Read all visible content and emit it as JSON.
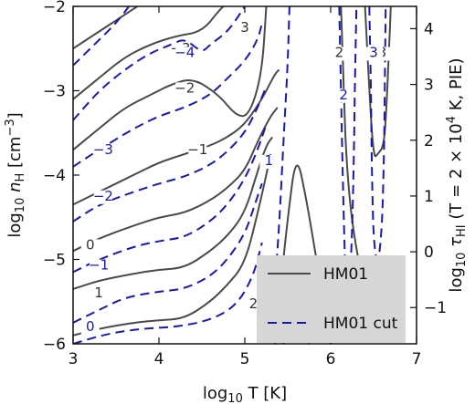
{
  "chart_data": {
    "type": "contour",
    "xlabel": "log10 T [K]",
    "ylabel": "log10 nH [cm^-3]",
    "y2label": "log10 τHI (T = 2 × 10^4 K, PIE)",
    "xlim": [
      3,
      7
    ],
    "ylim": [
      -6,
      -2
    ],
    "y2lim": [
      -1.65,
      4.4
    ],
    "x_ticks": [
      "3",
      "4",
      "5",
      "6",
      "7"
    ],
    "y_ticks": [
      "−6",
      "−5",
      "−4",
      "−3",
      "−2"
    ],
    "y2_ticks": [
      "−1",
      "0",
      "1",
      "2",
      "3",
      "4"
    ],
    "legend": {
      "position": "lower-right",
      "entries": [
        {
          "label": "HM01",
          "style": "solid",
          "color": "#4a4a4a"
        },
        {
          "label": "HM01 cut",
          "style": "dashed",
          "color": "#1a1aaa"
        }
      ]
    },
    "series": [
      {
        "name": "HM01",
        "style": "solid",
        "color": "#4a4a4a",
        "contours": [
          {
            "level": 1,
            "points": [
              [
                3,
                -5.9
              ],
              [
                3.3,
                -5.82
              ],
              [
                3.7,
                -5.75
              ],
              [
                4.0,
                -5.72
              ],
              [
                4.3,
                -5.7
              ],
              [
                4.6,
                -5.5
              ],
              [
                4.8,
                -5.3
              ],
              [
                5.0,
                -5.05
              ],
              [
                5.15,
                -4.45
              ],
              [
                5.25,
                -4.0
              ],
              [
                5.3,
                -3.75
              ]
            ]
          },
          {
            "level": 0,
            "points": [
              [
                3,
                -5.35
              ],
              [
                3.3,
                -5.25
              ],
              [
                3.7,
                -5.17
              ],
              [
                4.0,
                -5.12
              ],
              [
                4.3,
                -5.1
              ],
              [
                4.6,
                -4.9
              ],
              [
                4.8,
                -4.72
              ],
              [
                5.0,
                -4.45
              ],
              [
                5.15,
                -3.95
              ],
              [
                5.25,
                -3.65
              ],
              [
                5.32,
                -3.55
              ]
            ]
          },
          {
            "level": -1,
            "points": [
              [
                3,
                -4.9
              ],
              [
                3.3,
                -4.75
              ],
              [
                3.7,
                -4.6
              ],
              [
                4.0,
                -4.5
              ],
              [
                4.3,
                -4.45
              ],
              [
                4.6,
                -4.3
              ],
              [
                4.8,
                -4.15
              ],
              [
                5.0,
                -3.95
              ],
              [
                5.15,
                -3.6
              ],
              [
                5.3,
                -3.3
              ],
              [
                5.38,
                -3.2
              ]
            ]
          },
          {
            "level": -2,
            "points": [
              [
                3,
                -4.35
              ],
              [
                3.3,
                -4.2
              ],
              [
                3.7,
                -4.0
              ],
              [
                4.0,
                -3.85
              ],
              [
                4.3,
                -3.75
              ],
              [
                4.6,
                -3.65
              ],
              [
                4.8,
                -3.55
              ],
              [
                5.0,
                -3.4
              ],
              [
                5.2,
                -3.1
              ],
              [
                5.35,
                -2.8
              ],
              [
                5.4,
                -2.75
              ]
            ]
          },
          {
            "level": -3,
            "points": [
              [
                3,
                -3.7
              ],
              [
                3.3,
                -3.45
              ],
              [
                3.6,
                -3.2
              ],
              [
                3.9,
                -3.05
              ],
              [
                4.15,
                -2.92
              ],
              [
                4.4,
                -2.85
              ],
              [
                4.7,
                -3.05
              ],
              [
                4.9,
                -3.3
              ],
              [
                5.05,
                -3.3
              ],
              [
                5.2,
                -2.8
              ],
              [
                5.25,
                -2.0
              ]
            ]
          },
          {
            "level": -4,
            "points": [
              [
                3,
                -3.1
              ],
              [
                3.3,
                -2.85
              ],
              [
                3.6,
                -2.6
              ],
              [
                3.9,
                -2.45
              ],
              [
                4.2,
                -2.35
              ],
              [
                4.5,
                -2.3
              ],
              [
                4.7,
                -2.05
              ],
              [
                4.75,
                -2.0
              ]
            ]
          },
          {
            "level": -5,
            "points": [
              [
                3,
                -2.5
              ],
              [
                3.3,
                -2.3
              ],
              [
                3.6,
                -2.1
              ],
              [
                3.75,
                -2.0
              ]
            ]
          },
          {
            "level": 2,
            "points": [
              [
                5.35,
                -6.0
              ],
              [
                5.42,
                -5.3
              ],
              [
                5.5,
                -4.5
              ],
              [
                5.6,
                -3.72
              ],
              [
                5.72,
                -4.3
              ],
              [
                5.85,
                -5.1
              ],
              [
                5.98,
                -5.85
              ],
              [
                6.0,
                -6.0
              ]
            ]
          },
          {
            "level": 2,
            "points": [
              [
                6.12,
                -2.0
              ],
              [
                6.15,
                -2.9
              ],
              [
                6.18,
                -3.8
              ],
              [
                6.25,
                -4.6
              ],
              [
                6.38,
                -5.3
              ],
              [
                6.45,
                -5.55
              ],
              [
                6.5,
                -5.7
              ],
              [
                6.55,
                -5.85
              ]
            ]
          },
          {
            "level": 3,
            "points": [
              [
                6.4,
                -2.0
              ],
              [
                6.45,
                -3.0
              ],
              [
                6.5,
                -3.8
              ],
              [
                6.55,
                -3.75
              ],
              [
                6.62,
                -3.65
              ],
              [
                6.65,
                -3.2
              ],
              [
                6.68,
                -2.5
              ],
              [
                6.7,
                -2.0
              ]
            ]
          }
        ]
      },
      {
        "name": "HM01 cut",
        "style": "dashed",
        "color": "#1a1aaa",
        "contours": [
          {
            "level": 0,
            "points": [
              [
                3,
                -6.0
              ],
              [
                3.4,
                -5.88
              ],
              [
                3.8,
                -5.82
              ],
              [
                4.2,
                -5.8
              ],
              [
                4.6,
                -5.72
              ],
              [
                4.9,
                -5.55
              ],
              [
                5.1,
                -5.2
              ],
              [
                5.2,
                -4.8
              ]
            ]
          },
          {
            "level": -1,
            "points": [
              [
                3,
                -5.75
              ],
              [
                3.3,
                -5.6
              ],
              [
                3.6,
                -5.45
              ],
              [
                4.0,
                -5.38
              ],
              [
                4.3,
                -5.35
              ],
              [
                4.6,
                -5.2
              ],
              [
                4.8,
                -5.0
              ],
              [
                5.0,
                -4.7
              ],
              [
                5.1,
                -4.4
              ],
              [
                5.2,
                -4.1
              ]
            ]
          },
          {
            "level": -1,
            "points": [
              [
                3,
                -5.15
              ],
              [
                3.3,
                -5.0
              ],
              [
                3.7,
                -4.85
              ],
              [
                4.0,
                -4.78
              ],
              [
                4.3,
                -4.74
              ],
              [
                4.6,
                -4.55
              ],
              [
                4.8,
                -4.35
              ],
              [
                5.0,
                -4.05
              ],
              [
                5.15,
                -3.7
              ],
              [
                5.25,
                -3.4
              ]
            ]
          },
          {
            "level": -2,
            "points": [
              [
                3,
                -4.55
              ],
              [
                3.3,
                -4.35
              ],
              [
                3.7,
                -4.2
              ],
              [
                4.0,
                -4.1
              ],
              [
                4.3,
                -4.02
              ],
              [
                4.6,
                -3.88
              ],
              [
                4.8,
                -3.72
              ],
              [
                5.0,
                -3.5
              ],
              [
                5.15,
                -3.2
              ],
              [
                5.25,
                -2.95
              ]
            ]
          },
          {
            "level": -3,
            "points": [
              [
                3,
                -3.9
              ],
              [
                3.3,
                -3.7
              ],
              [
                3.7,
                -3.45
              ],
              [
                4.0,
                -3.3
              ],
              [
                4.3,
                -3.2
              ],
              [
                4.6,
                -3.05
              ],
              [
                4.8,
                -2.85
              ],
              [
                5.0,
                -2.65
              ],
              [
                5.15,
                -2.4
              ],
              [
                5.2,
                -2.2
              ]
            ]
          },
          {
            "level": -4,
            "points": [
              [
                3,
                -3.35
              ],
              [
                3.3,
                -3.0
              ],
              [
                3.6,
                -2.75
              ],
              [
                3.9,
                -2.55
              ],
              [
                4.15,
                -2.45
              ],
              [
                4.3,
                -2.38
              ],
              [
                4.5,
                -2.55
              ],
              [
                4.6,
                -2.45
              ],
              [
                4.8,
                -2.3
              ],
              [
                4.95,
                -2.08
              ],
              [
                5.0,
                -2.0
              ]
            ]
          },
          {
            "level": -5,
            "points": [
              [
                3,
                -2.7
              ],
              [
                3.3,
                -2.4
              ],
              [
                3.5,
                -2.2
              ],
              [
                3.65,
                -2.0
              ]
            ]
          },
          {
            "level": 1,
            "points": [
              [
                5.3,
                -5.9
              ],
              [
                5.35,
                -5.3
              ],
              [
                5.4,
                -4.6
              ],
              [
                5.45,
                -3.6
              ],
              [
                5.5,
                -2.7
              ],
              [
                5.52,
                -2.0
              ]
            ]
          },
          {
            "level": 2,
            "points": [
              [
                5.45,
                -6.0
              ],
              [
                5.5,
                -5.6
              ],
              [
                5.55,
                -5.2
              ],
              [
                5.62,
                -4.9
              ],
              [
                5.68,
                -5.2
              ],
              [
                5.72,
                -5.6
              ],
              [
                5.75,
                -6.0
              ]
            ]
          },
          {
            "level": 2,
            "points": [
              [
                6.1,
                -2.0
              ],
              [
                6.12,
                -3.0
              ],
              [
                6.14,
                -4.0
              ],
              [
                6.16,
                -4.8
              ],
              [
                6.18,
                -5.4
              ],
              [
                6.22,
                -5.3
              ],
              [
                6.25,
                -4.7
              ],
              [
                6.27,
                -3.8
              ],
              [
                6.28,
                -3.0
              ],
              [
                6.3,
                -2.0
              ]
            ]
          },
          {
            "level": 3,
            "points": [
              [
                6.45,
                -2.0
              ],
              [
                6.47,
                -3.0
              ],
              [
                6.48,
                -4.0
              ],
              [
                6.5,
                -4.8
              ],
              [
                6.55,
                -5.1
              ],
              [
                6.6,
                -4.6
              ],
              [
                6.62,
                -3.8
              ],
              [
                6.63,
                -3.0
              ],
              [
                6.64,
                -2.0
              ]
            ]
          }
        ]
      }
    ],
    "contour_labels": [
      {
        "text": "−3",
        "series": "HM01",
        "x": 4.25,
        "y": -2.55
      },
      {
        "text": "−2",
        "series": "HM01",
        "x": 4.3,
        "y": -3.02
      },
      {
        "text": "−1",
        "series": "HM01",
        "x": 4.45,
        "y": -3.75
      },
      {
        "text": "0",
        "series": "HM01",
        "x": 3.2,
        "y": -4.88
      },
      {
        "text": "1",
        "series": "HM01",
        "x": 3.3,
        "y": -5.45
      },
      {
        "text": "2",
        "series": "HM01",
        "x": 5.1,
        "y": -5.58
      },
      {
        "text": "2",
        "series": "HM01",
        "x": 6.1,
        "y": -2.6
      },
      {
        "text": "3",
        "series": "HM01",
        "x": 5.0,
        "y": -2.3
      },
      {
        "text": "3",
        "series": "HM01",
        "x": 6.6,
        "y": -2.6
      },
      {
        "text": "−4",
        "series": "HM01 cut",
        "x": 4.3,
        "y": -2.6
      },
      {
        "text": "−3",
        "series": "HM01 cut",
        "x": 3.35,
        "y": -3.75
      },
      {
        "text": "−2",
        "series": "HM01 cut",
        "x": 3.35,
        "y": -4.3
      },
      {
        "text": "−1",
        "series": "HM01 cut",
        "x": 3.3,
        "y": -5.12
      },
      {
        "text": "0",
        "series": "HM01 cut",
        "x": 3.2,
        "y": -5.85
      },
      {
        "text": "1",
        "series": "HM01 cut",
        "x": 5.28,
        "y": -3.88
      },
      {
        "text": "2",
        "series": "HM01 cut",
        "x": 6.15,
        "y": -3.1
      },
      {
        "text": "3",
        "series": "HM01 cut",
        "x": 6.5,
        "y": -2.6
      }
    ]
  }
}
